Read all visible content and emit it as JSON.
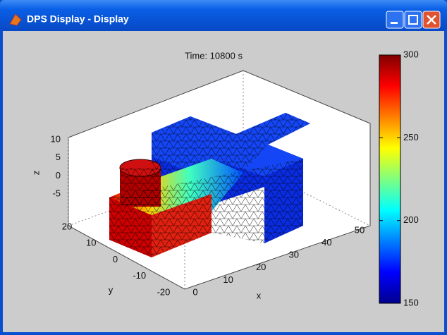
{
  "window": {
    "title": "DPS Display - Display"
  },
  "plot": {
    "title": "Time: 10800 s",
    "xlabel": "x",
    "ylabel": "y",
    "zlabel": "z",
    "xticks": [
      0,
      10,
      20,
      30,
      40,
      50
    ],
    "yticks": [
      20,
      10,
      0,
      -10,
      -20
    ],
    "zticks": [
      10,
      5,
      0,
      -5
    ]
  },
  "colorbar": {
    "ticks": [
      150,
      200,
      250,
      300
    ]
  }
}
